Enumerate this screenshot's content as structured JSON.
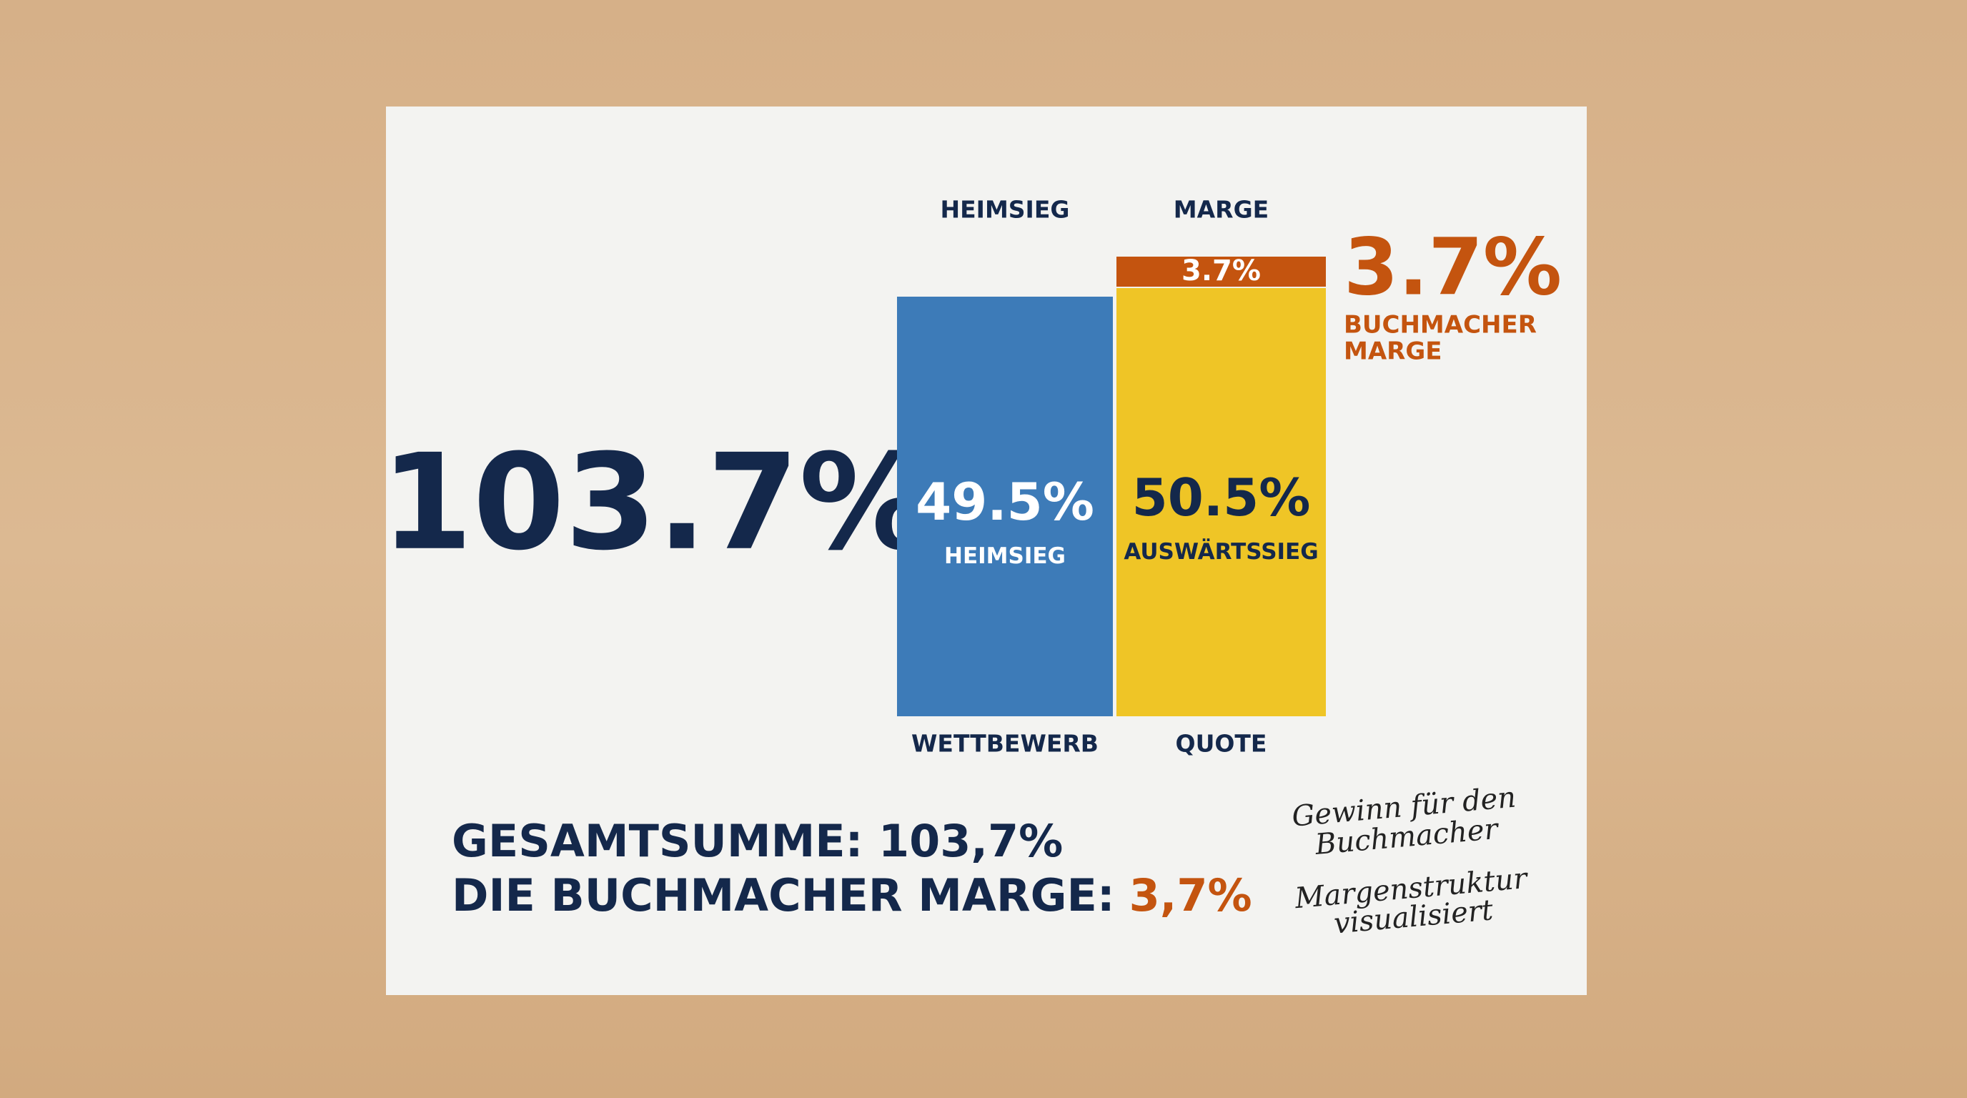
{
  "chart_data": {
    "type": "bar",
    "stacked": true,
    "column_titles": [
      "HEIMSIEG",
      "MARGE"
    ],
    "categories": [
      "WETTBEWERB",
      "QUOTE"
    ],
    "series": [
      {
        "name": "HEIMSIEG",
        "color": "#3d7bb8",
        "text_color": "#ffffff",
        "values": [
          49.5,
          null
        ],
        "value_labels": [
          "49.5%",
          null
        ]
      },
      {
        "name": "AUSWÄRTSSIEG",
        "color": "#efc526",
        "text_color": "#14284b",
        "values": [
          null,
          50.5
        ],
        "value_labels": [
          null,
          "50.5%"
        ]
      },
      {
        "color": "#c4540f",
        "text_color": "#ffffff",
        "values": [
          null,
          3.7
        ],
        "value_labels": [
          null,
          "3.7%"
        ]
      }
    ],
    "total_label": "103.7%",
    "callout": {
      "value_label": "3.7%",
      "lines": [
        "BUCHMACHER",
        "MARGE"
      ],
      "color": "#c4540f"
    },
    "footer": {
      "line1": "GESAMTSUMME: 103,7%",
      "line2": "DIE BUCHMACHER MARGE:",
      "line2_value": "3,7%"
    },
    "notes": [
      [
        "Gewinn für den",
        "Buchmacher"
      ],
      [
        "Margenstruktur",
        "visualisiert"
      ]
    ]
  }
}
